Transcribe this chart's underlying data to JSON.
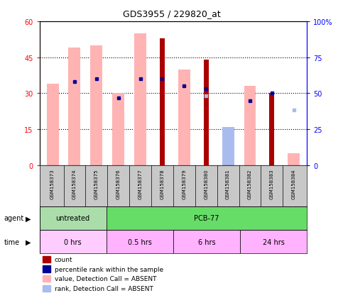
{
  "title": "GDS3955 / 229820_at",
  "samples": [
    "GSM158373",
    "GSM158374",
    "GSM158375",
    "GSM158376",
    "GSM158377",
    "GSM158378",
    "GSM158379",
    "GSM158380",
    "GSM158381",
    "GSM158382",
    "GSM158383",
    "GSM158384"
  ],
  "value_absent": [
    34,
    49,
    50,
    30,
    55,
    null,
    40,
    null,
    null,
    33,
    null,
    5
  ],
  "rank_absent_bar": [
    null,
    null,
    null,
    null,
    null,
    null,
    null,
    null,
    16,
    null,
    null,
    null
  ],
  "count": [
    null,
    null,
    null,
    null,
    null,
    53,
    null,
    44,
    null,
    null,
    30,
    null
  ],
  "percentile_rank_left": [
    null,
    35,
    36,
    28,
    36,
    36,
    33,
    32,
    null,
    27,
    30,
    null
  ],
  "rank_absent_dot_left": [
    null,
    null,
    null,
    null,
    null,
    null,
    null,
    29,
    null,
    null,
    null,
    23
  ],
  "left_ylim": [
    0,
    60
  ],
  "right_ylim": [
    0,
    100
  ],
  "left_yticks": [
    0,
    15,
    30,
    45,
    60
  ],
  "right_yticks": [
    0,
    25,
    50,
    75,
    100
  ],
  "right_yticklabels": [
    "0",
    "25",
    "50",
    "75",
    "100%"
  ],
  "color_value_absent": "#FFB3B3",
  "color_rank_absent": "#AABBEE",
  "color_count": "#AA0000",
  "color_percentile": "#000099",
  "background_color": "#FFFFFF",
  "agent_untreated_color": "#90EE90",
  "agent_pcb_color": "#66CC66",
  "time_color_light": "#FFB3FF",
  "time_color_dark": "#EE88EE",
  "gray_color": "#C8C8C8"
}
